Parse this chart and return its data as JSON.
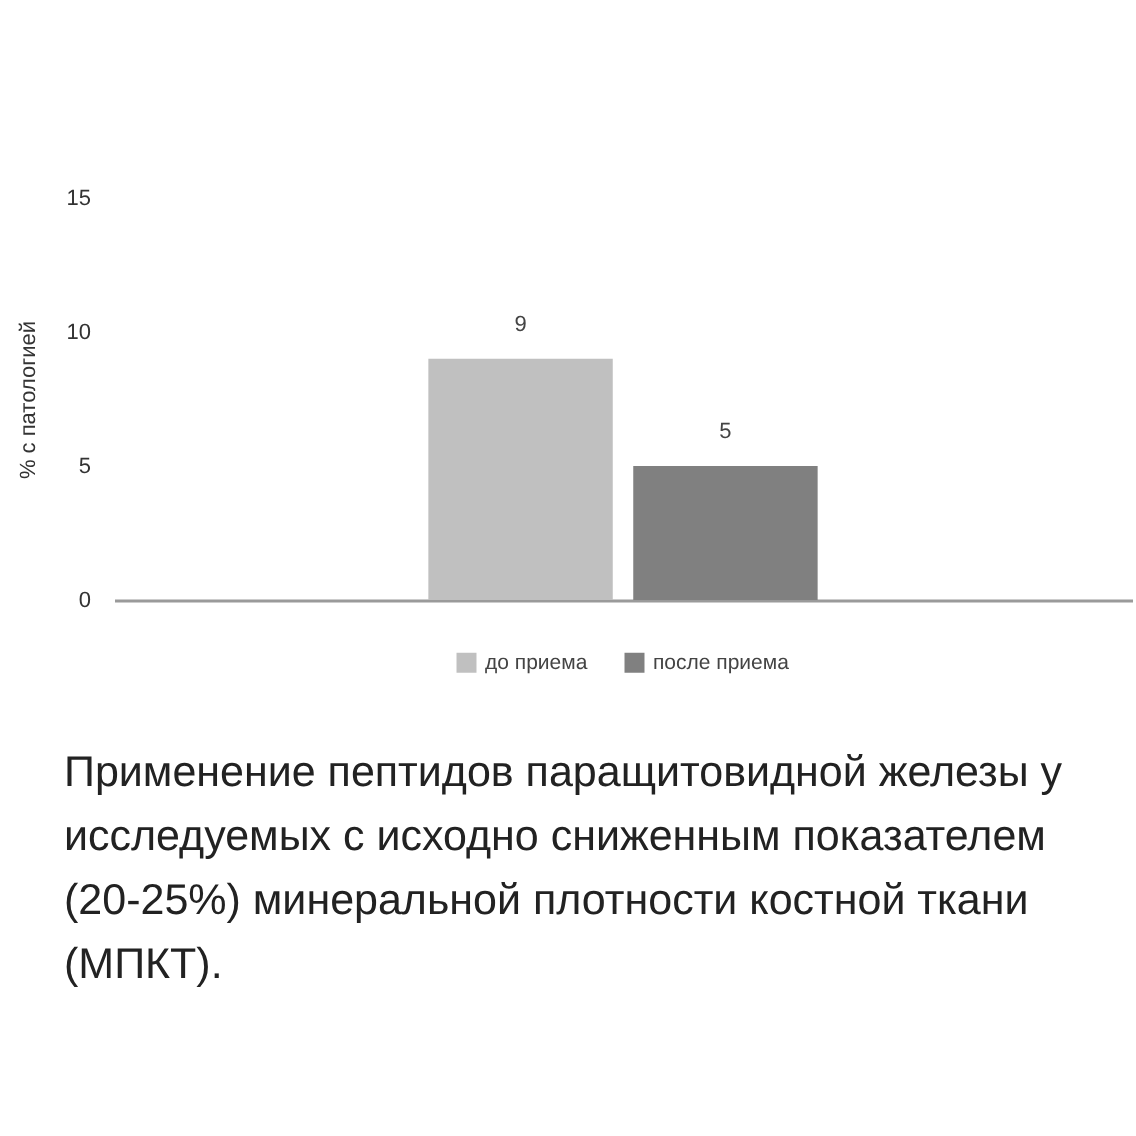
{
  "chart_data": {
    "type": "bar",
    "categories": [
      null
    ],
    "series": [
      {
        "name": "до приема",
        "color": "#c0c0c0",
        "values": [
          9
        ]
      },
      {
        "name": "после приема",
        "color": "#808080",
        "values": [
          5
        ]
      }
    ],
    "ylabel": "% с патологией",
    "ylim": [
      0,
      15
    ],
    "yticks": [
      0,
      5,
      10,
      15
    ],
    "data_labels": true,
    "legend": "bottom",
    "tick_labels": "y",
    "annotations": [
      "Применение пептидов паращитовидной железы у исследуемых с исходно сниженным показателем (20-25%) минеральной плотности костной ткани (МПКТ)."
    ]
  }
}
